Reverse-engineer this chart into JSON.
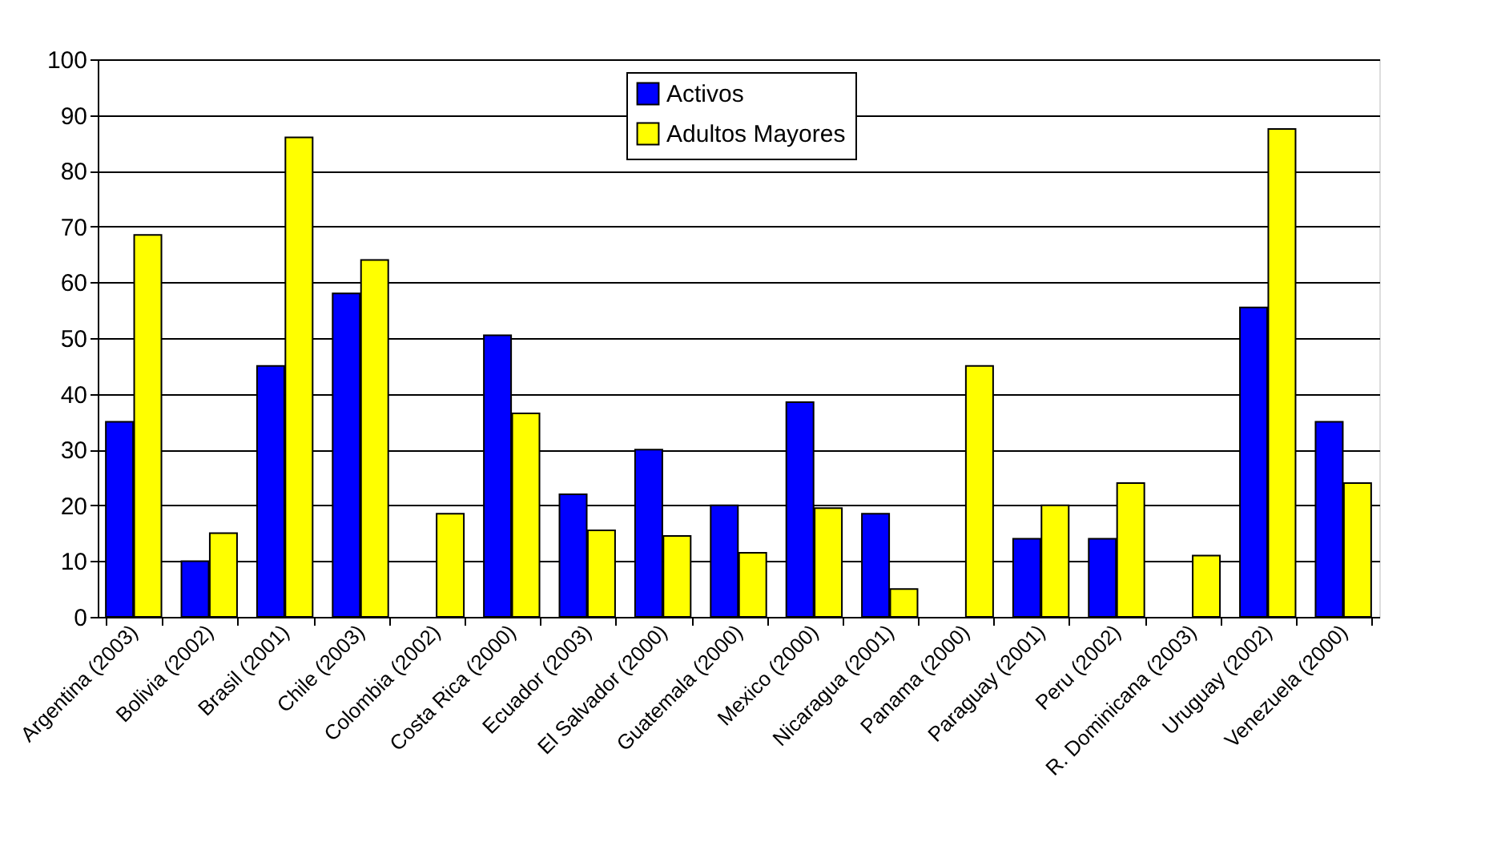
{
  "chart_data": {
    "type": "bar",
    "categories": [
      "Argentina (2003)",
      "Bolivia (2002)",
      "Brasil (2001)",
      "Chile (2003)",
      "Colombia (2002)",
      "Costa Rica (2000)",
      "Ecuador  (2003)",
      "El Salvador (2000)",
      "Guatemala  (2000)",
      "Mexico  (2000)",
      "Nicaragua  (2001)",
      "Panama (2000)",
      "Paraguay  (2001)",
      "Peru (2002)",
      "R. Dominicana (2003)",
      "Uruguay (2002)",
      "Venezuela (2000)"
    ],
    "series": [
      {
        "name": "Activos",
        "color": "#0000ff",
        "values": [
          35,
          10,
          45,
          58,
          null,
          50.5,
          22,
          30,
          20,
          38.5,
          18.5,
          null,
          14,
          14,
          null,
          55.5,
          35
        ]
      },
      {
        "name": "Adultos Mayores",
        "color": "#ffff00",
        "values": [
          68.5,
          15,
          86,
          64,
          18.5,
          36.5,
          15.5,
          14.5,
          11.5,
          19.5,
          5,
          45,
          20,
          24,
          11,
          87.5,
          24
        ]
      }
    ],
    "ylim": [
      0,
      100
    ],
    "yticks": [
      0,
      10,
      20,
      30,
      40,
      50,
      60,
      70,
      80,
      90,
      100
    ],
    "grid": "y",
    "legend": "top"
  }
}
